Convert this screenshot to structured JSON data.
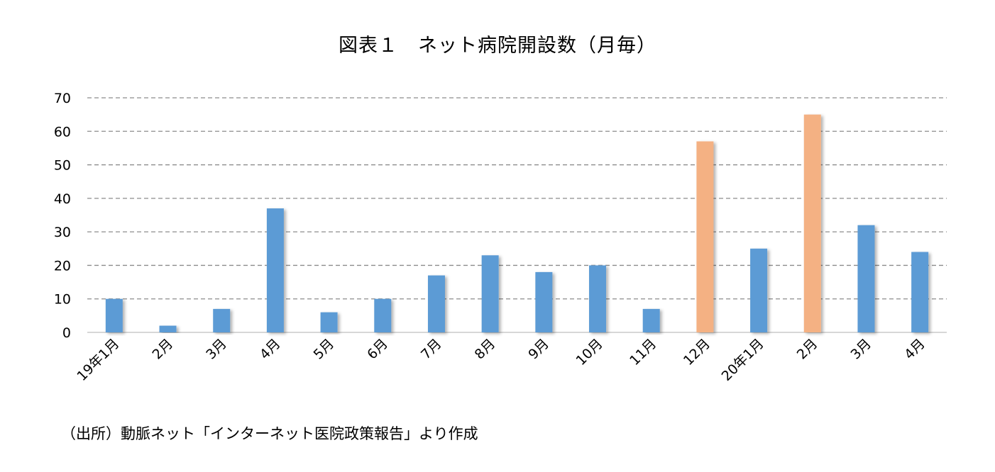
{
  "chart_data": {
    "type": "bar",
    "title": "図表１　ネット病院開設数（月毎）",
    "categories": [
      "19年1月",
      "2月",
      "3月",
      "4月",
      "5月",
      "6月",
      "7月",
      "8月",
      "9月",
      "10月",
      "11月",
      "12月",
      "20年1月",
      "2月",
      "3月",
      "4月"
    ],
    "values": [
      10,
      2,
      7,
      37,
      6,
      10,
      17,
      23,
      18,
      20,
      7,
      57,
      25,
      65,
      32,
      24
    ],
    "highlight_indices": [
      11,
      13
    ],
    "yticks": [
      0,
      10,
      20,
      30,
      40,
      50,
      60,
      70
    ],
    "ylim": [
      0,
      70
    ],
    "xlabel": "",
    "ylabel": "",
    "grid": "horizontal dashed",
    "colors": {
      "default": "#5b9bd5",
      "highlight": "#f4b183"
    }
  },
  "source": "（出所）動脈ネット「インターネット医院政策報告」より作成"
}
